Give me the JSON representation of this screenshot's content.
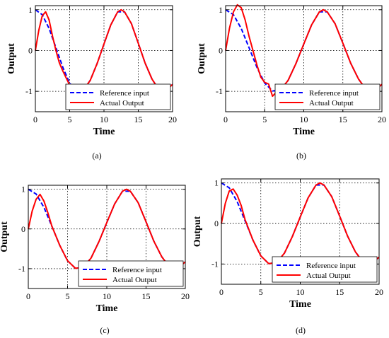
{
  "chart_data": [
    {
      "type": "line",
      "caption": "(a)",
      "xlabel": "Time",
      "ylabel": "Output",
      "xlim": [
        0,
        20
      ],
      "ylim": [
        -1.5,
        1.1
      ],
      "xticks": [
        0,
        5,
        10,
        15,
        20
      ],
      "yticks": [
        -1,
        0,
        1
      ],
      "grid": true,
      "legend_position": "lower-right",
      "series": [
        {
          "name": "Reference input",
          "color": "#0000ff",
          "style": "dashed",
          "x": [
            0,
            1,
            2,
            3,
            4,
            5,
            6,
            7,
            8,
            9,
            10,
            11,
            12,
            13,
            14,
            15,
            16,
            17,
            18,
            19,
            20
          ],
          "y": [
            1.0,
            0.88,
            0.54,
            0.07,
            -0.41,
            -0.8,
            -0.99,
            -0.97,
            -0.73,
            -0.32,
            0.16,
            0.63,
            0.95,
            0.95,
            0.66,
            0.18,
            -0.31,
            -0.7,
            -0.96,
            -0.99,
            -0.83
          ]
        },
        {
          "name": "Actual Output",
          "color": "#ff0000",
          "style": "solid",
          "x": [
            0,
            0.5,
            1,
            1.5,
            2,
            2.5,
            3,
            3.5,
            4,
            5,
            6,
            7,
            8,
            9,
            10,
            11,
            12,
            12.5,
            13,
            14,
            15,
            16,
            17,
            18,
            19,
            20
          ],
          "y": [
            0,
            0.5,
            0.85,
            0.95,
            0.75,
            0.35,
            0.0,
            -0.3,
            -0.5,
            -0.85,
            -1.0,
            -0.97,
            -0.73,
            -0.32,
            0.16,
            0.63,
            0.95,
            1.0,
            0.95,
            0.66,
            0.18,
            -0.31,
            -0.7,
            -0.96,
            -0.99,
            -0.83
          ]
        }
      ]
    },
    {
      "type": "line",
      "caption": "(b)",
      "xlabel": "Time",
      "ylabel": "Output",
      "xlim": [
        0,
        20
      ],
      "ylim": [
        -1.5,
        1.1
      ],
      "xticks": [
        0,
        5,
        10,
        15,
        20
      ],
      "yticks": [
        -1,
        0,
        1
      ],
      "grid": true,
      "legend_position": "lower-right",
      "series": [
        {
          "name": "Reference input",
          "color": "#0000ff",
          "style": "dashed",
          "x": [
            0,
            1,
            2,
            3,
            4,
            5,
            6,
            7,
            8,
            9,
            10,
            11,
            12,
            13,
            14,
            15,
            16,
            17,
            18,
            19,
            20
          ],
          "y": [
            1.0,
            0.88,
            0.54,
            0.07,
            -0.41,
            -0.8,
            -0.99,
            -0.97,
            -0.73,
            -0.32,
            0.16,
            0.63,
            0.95,
            0.95,
            0.66,
            0.18,
            -0.31,
            -0.7,
            -0.96,
            -0.99,
            -0.83
          ]
        },
        {
          "name": "Actual Output",
          "color": "#ff0000",
          "style": "solid",
          "x": [
            0,
            0.5,
            1,
            1.5,
            2,
            2.5,
            3,
            3.5,
            4,
            4.5,
            5,
            5.5,
            6,
            6.5,
            7,
            8,
            9,
            10,
            11,
            12,
            12.5,
            13,
            14,
            15,
            16,
            17,
            18,
            19,
            20
          ],
          "y": [
            0,
            0.55,
            0.95,
            1.12,
            1.05,
            0.75,
            0.35,
            0.0,
            -0.35,
            -0.65,
            -0.78,
            -0.82,
            -1.12,
            -1.02,
            -0.97,
            -0.73,
            -0.32,
            0.16,
            0.63,
            0.95,
            1.0,
            0.95,
            0.66,
            0.18,
            -0.31,
            -0.7,
            -0.96,
            -0.99,
            -0.83
          ]
        }
      ]
    },
    {
      "type": "line",
      "caption": "(c)",
      "xlabel": "Time",
      "ylabel": "Output",
      "xlim": [
        0,
        20
      ],
      "ylim": [
        -1.5,
        1.1
      ],
      "xticks": [
        0,
        5,
        10,
        15,
        20
      ],
      "yticks": [
        -1,
        0,
        1
      ],
      "grid": true,
      "legend_position": "lower-right",
      "series": [
        {
          "name": "Reference input",
          "color": "#0000ff",
          "style": "dashed",
          "x": [
            0,
            1,
            2,
            3,
            4,
            5,
            6,
            7,
            8,
            9,
            10,
            11,
            12,
            13,
            14,
            15,
            16,
            17,
            18,
            19,
            20
          ],
          "y": [
            1.0,
            0.88,
            0.54,
            0.07,
            -0.41,
            -0.8,
            -0.99,
            -0.97,
            -0.73,
            -0.32,
            0.16,
            0.63,
            0.95,
            0.95,
            0.66,
            0.18,
            -0.31,
            -0.7,
            -0.96,
            -0.99,
            -0.83
          ]
        },
        {
          "name": "Actual Output",
          "color": "#ff0000",
          "style": "solid",
          "x": [
            0,
            0.5,
            1,
            1.5,
            2,
            2.5,
            3,
            4,
            5,
            6,
            7,
            8,
            9,
            10,
            11,
            12,
            12.5,
            13,
            14,
            15,
            16,
            17,
            18,
            19,
            20
          ],
          "y": [
            0,
            0.45,
            0.75,
            0.87,
            0.7,
            0.4,
            0.07,
            -0.41,
            -0.8,
            -0.99,
            -0.97,
            -0.73,
            -0.32,
            0.16,
            0.63,
            0.95,
            1.0,
            0.95,
            0.66,
            0.18,
            -0.31,
            -0.7,
            -0.96,
            -0.99,
            -0.83
          ]
        }
      ]
    },
    {
      "type": "line",
      "caption": "(d)",
      "xlabel": "Time",
      "ylabel": "Output",
      "xlim": [
        0,
        20
      ],
      "ylim": [
        -1.5,
        1.1
      ],
      "xticks": [
        0,
        5,
        10,
        15,
        20
      ],
      "yticks": [
        -1,
        0,
        1
      ],
      "grid": true,
      "legend_position": "lower-right",
      "series": [
        {
          "name": "Reference input",
          "color": "#0000ff",
          "style": "dashed",
          "x": [
            0,
            1,
            2,
            3,
            4,
            5,
            6,
            7,
            8,
            9,
            10,
            11,
            12,
            13,
            14,
            15,
            16,
            17,
            18,
            19,
            20
          ],
          "y": [
            1.0,
            0.88,
            0.54,
            0.07,
            -0.41,
            -0.8,
            -0.99,
            -0.97,
            -0.73,
            -0.32,
            0.16,
            0.63,
            0.95,
            0.95,
            0.66,
            0.18,
            -0.31,
            -0.7,
            -0.96,
            -0.99,
            -0.83
          ]
        },
        {
          "name": "Actual Output",
          "color": "#ff0000",
          "style": "solid",
          "x": [
            0,
            0.5,
            1,
            1.5,
            2,
            2.5,
            3,
            4,
            5,
            6,
            7,
            8,
            9,
            10,
            11,
            12,
            12.5,
            13,
            14,
            15,
            16,
            17,
            18,
            19,
            20
          ],
          "y": [
            0,
            0.5,
            0.8,
            0.85,
            0.7,
            0.45,
            0.1,
            -0.41,
            -0.8,
            -0.99,
            -0.97,
            -0.73,
            -0.32,
            0.16,
            0.63,
            0.95,
            1.0,
            0.95,
            0.66,
            0.18,
            -0.31,
            -0.7,
            -0.96,
            -0.99,
            -0.83
          ]
        }
      ]
    }
  ]
}
